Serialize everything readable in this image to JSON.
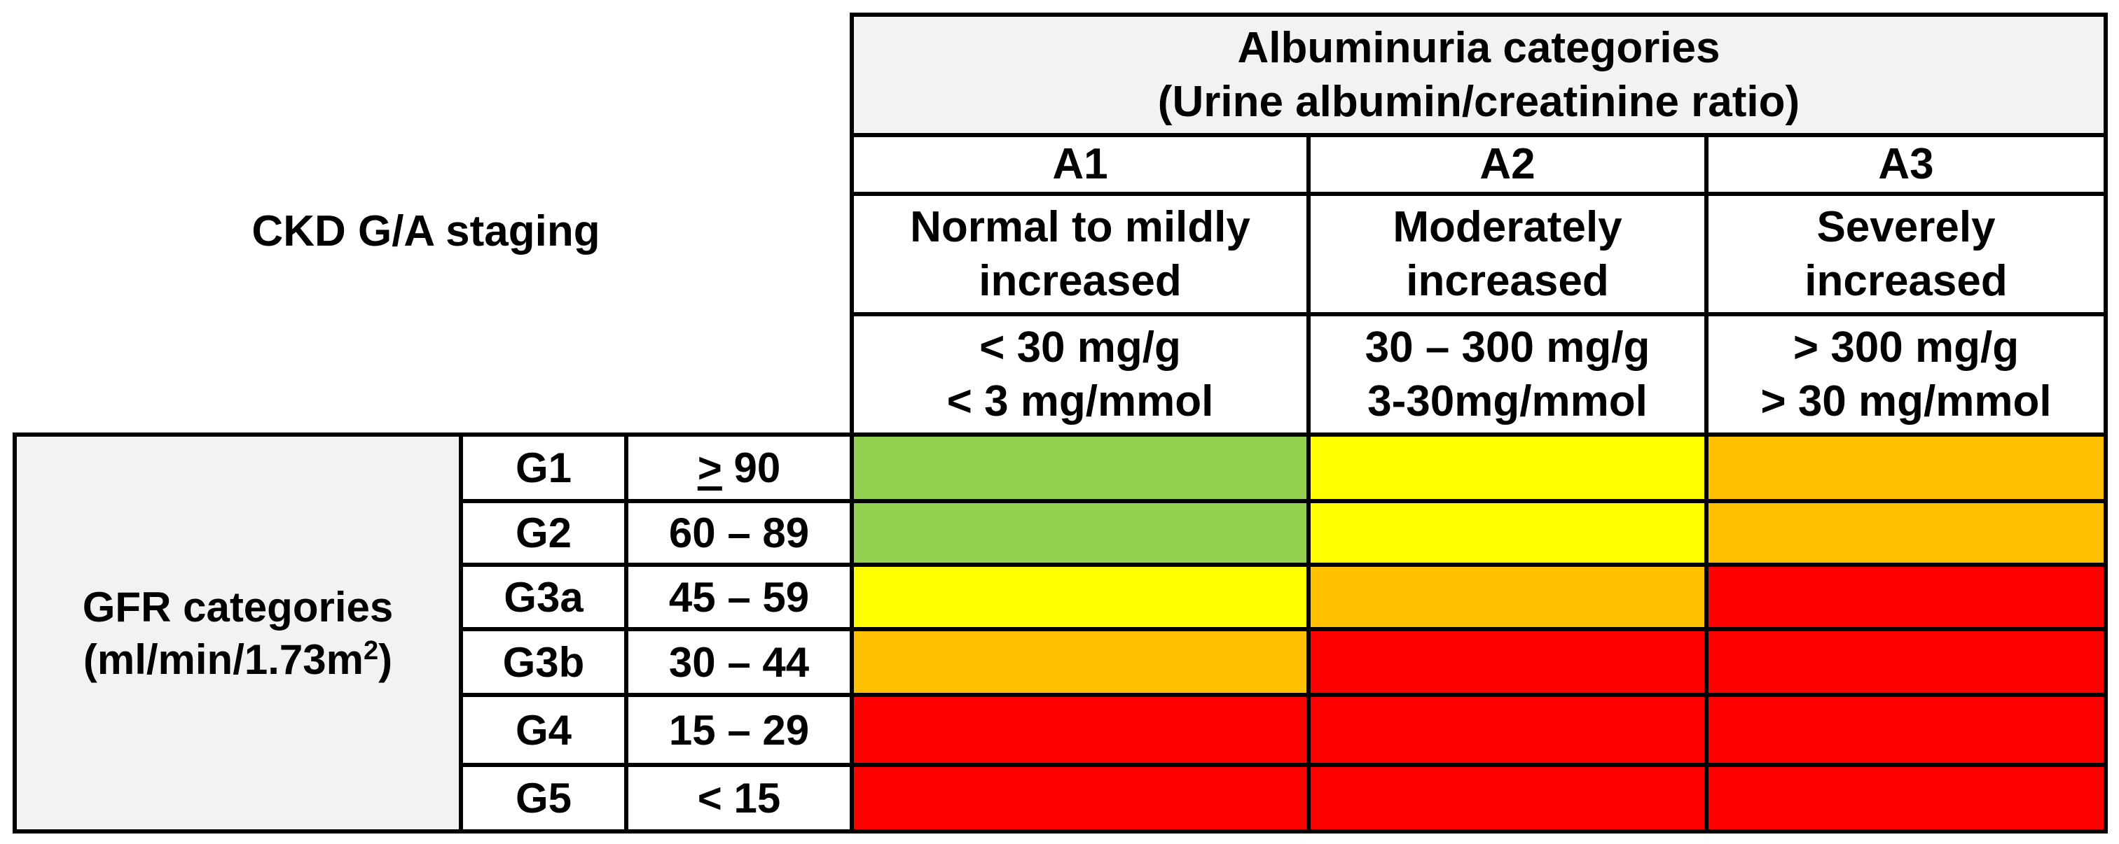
{
  "title": "CKD G/A staging",
  "albuminuria": {
    "header_line1": "Albuminuria categories",
    "header_line2": "(Urine albumin/creatinine ratio)",
    "categories": [
      {
        "code": "A1",
        "desc_line1": "Normal to mildly",
        "desc_line2": "increased",
        "range_line1": "< 30 mg/g",
        "range_line2": "< 3 mg/mmol"
      },
      {
        "code": "A2",
        "desc_line1": "Moderately",
        "desc_line2": "increased",
        "range_line1": "30 – 300 mg/g",
        "range_line2": "3-30mg/mmol"
      },
      {
        "code": "A3",
        "desc_line1": "Severely",
        "desc_line2": "increased",
        "range_line1": "> 300 mg/g",
        "range_line2": "> 30 mg/mmol"
      }
    ]
  },
  "gfr": {
    "label_line1": "GFR categories",
    "label_line2_prefix": "(ml/min/1.73m",
    "label_line2_sup": "2",
    "label_line2_suffix": ")",
    "rows": [
      {
        "stage": "G1",
        "range_symbol": ">",
        "range": " 90"
      },
      {
        "stage": "G2",
        "range": "60 – 89"
      },
      {
        "stage": "G3a",
        "range": "45 – 59"
      },
      {
        "stage": "G3b",
        "range": "30 – 44"
      },
      {
        "stage": "G4",
        "range": "15 – 29"
      },
      {
        "stage": "G5",
        "range": "< 15"
      }
    ]
  },
  "risk_colors": {
    "green": "#92d050",
    "yellow": "#ffff00",
    "orange": "#ffc000",
    "red": "#ff0000"
  },
  "risk_grid": [
    [
      "green",
      "yellow",
      "orange"
    ],
    [
      "green",
      "yellow",
      "orange"
    ],
    [
      "yellow",
      "orange",
      "red"
    ],
    [
      "orange",
      "red",
      "red"
    ],
    [
      "red",
      "red",
      "red"
    ],
    [
      "red",
      "red",
      "red"
    ]
  ]
}
